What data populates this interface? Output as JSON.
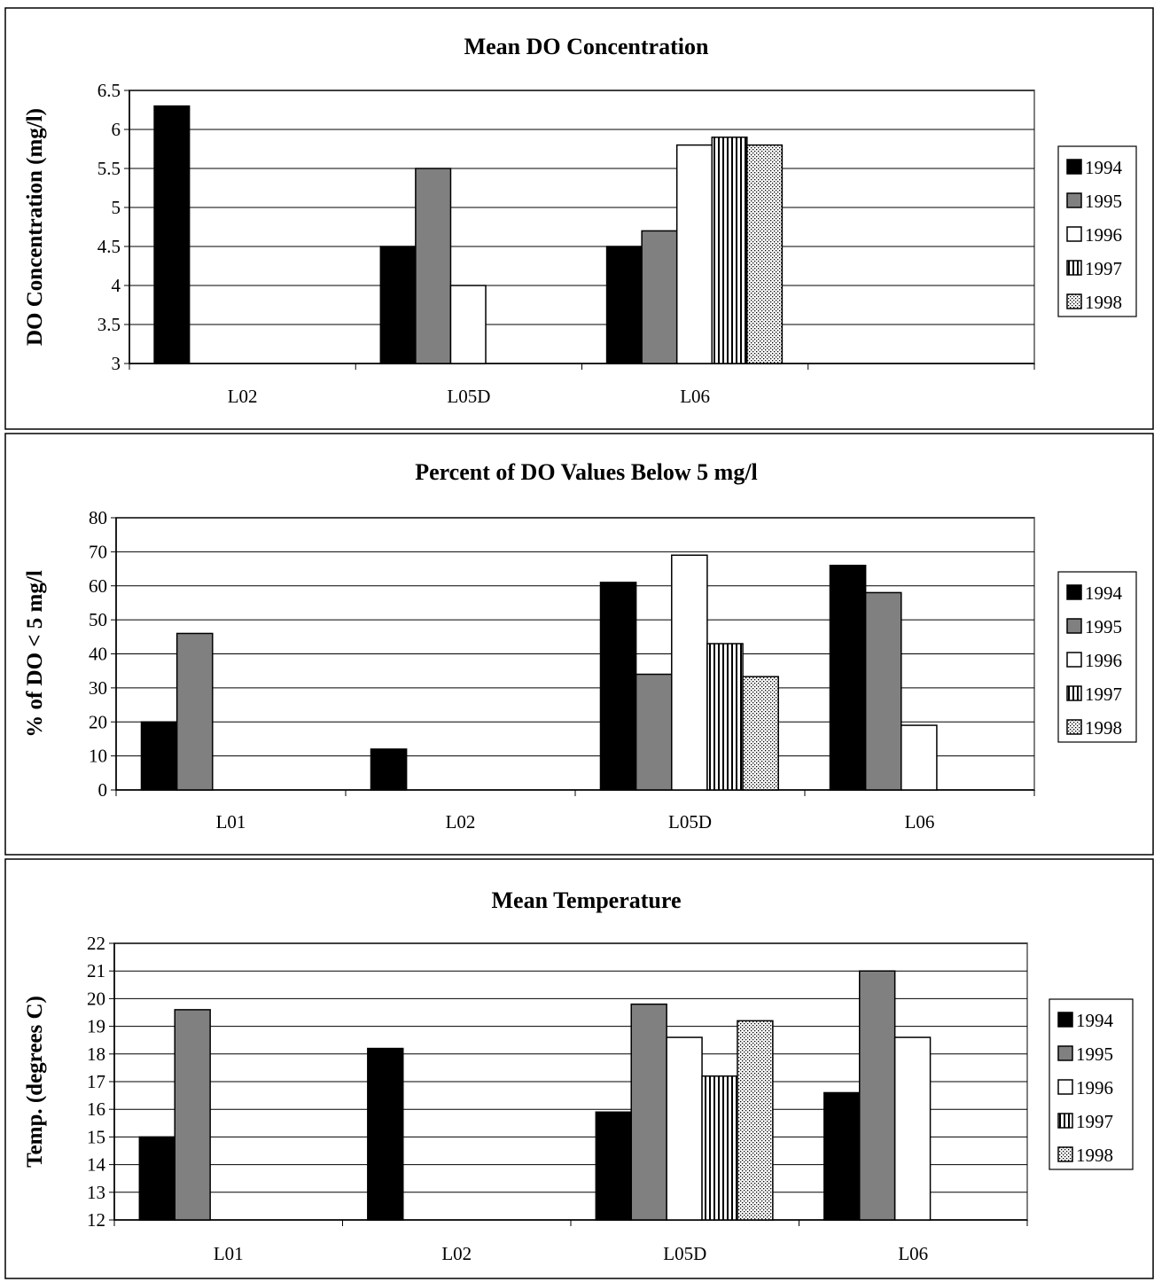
{
  "colors": {
    "1994": "#000000",
    "1995": "#808080",
    "1996": "#ffffff",
    "1997": "vertical-stripes",
    "1998": "dots",
    "grid": "#000000",
    "plot_border": "#808080"
  },
  "chart_data": [
    {
      "type": "bar",
      "title": "Mean DO Concentration",
      "xlabel": "",
      "ylabel": "DO Concentration (mg/l)",
      "ylim": [
        3,
        6.5
      ],
      "ytick_step": 0.5,
      "yticks": [
        "3",
        "3.5",
        "4",
        "4.5",
        "5",
        "5.5",
        "6",
        "6.5"
      ],
      "categories": [
        "L02",
        "L05D",
        "L06",
        ""
      ],
      "grid": "horizontal",
      "legend": "right",
      "series": [
        {
          "name": "1994",
          "values": [
            6.3,
            4.5,
            4.5,
            null
          ]
        },
        {
          "name": "1995",
          "values": [
            null,
            5.5,
            4.7,
            null
          ]
        },
        {
          "name": "1996",
          "values": [
            null,
            4.0,
            5.8,
            null
          ]
        },
        {
          "name": "1997",
          "values": [
            null,
            null,
            5.9,
            null
          ]
        },
        {
          "name": "1998",
          "values": [
            null,
            null,
            5.8,
            null
          ]
        }
      ]
    },
    {
      "type": "bar",
      "title": "Percent of DO Values Below 5 mg/l",
      "xlabel": "",
      "ylabel": "% of DO < 5 mg/l",
      "ylim": [
        0,
        80
      ],
      "ytick_step": 10,
      "yticks": [
        "0",
        "10",
        "20",
        "30",
        "40",
        "50",
        "60",
        "70",
        "80"
      ],
      "categories": [
        "L01",
        "L02",
        "L05D",
        "L06"
      ],
      "grid": "horizontal",
      "legend": "right",
      "series": [
        {
          "name": "1994",
          "values": [
            20,
            12,
            61,
            66
          ]
        },
        {
          "name": "1995",
          "values": [
            46,
            null,
            34,
            58
          ]
        },
        {
          "name": "1996",
          "values": [
            null,
            null,
            69,
            19
          ]
        },
        {
          "name": "1997",
          "values": [
            null,
            null,
            43,
            null
          ]
        },
        {
          "name": "1998",
          "values": [
            null,
            null,
            33.3,
            null
          ]
        }
      ]
    },
    {
      "type": "bar",
      "title": "Mean Temperature",
      "xlabel": "",
      "ylabel": "Temp. (degrees C)",
      "ylim": [
        12,
        22
      ],
      "ytick_step": 1,
      "yticks": [
        "12",
        "13",
        "14",
        "15",
        "16",
        "17",
        "18",
        "19",
        "20",
        "21",
        "22"
      ],
      "categories": [
        "L01",
        "L02",
        "L05D",
        "L06"
      ],
      "grid": "horizontal",
      "legend": "right",
      "series": [
        {
          "name": "1994",
          "values": [
            15.0,
            18.2,
            15.9,
            16.6
          ]
        },
        {
          "name": "1995",
          "values": [
            19.6,
            null,
            19.8,
            21.0
          ]
        },
        {
          "name": "1996",
          "values": [
            null,
            null,
            18.6,
            18.6
          ]
        },
        {
          "name": "1997",
          "values": [
            null,
            null,
            17.2,
            null
          ]
        },
        {
          "name": "1998",
          "values": [
            null,
            null,
            19.2,
            null
          ]
        }
      ]
    }
  ]
}
